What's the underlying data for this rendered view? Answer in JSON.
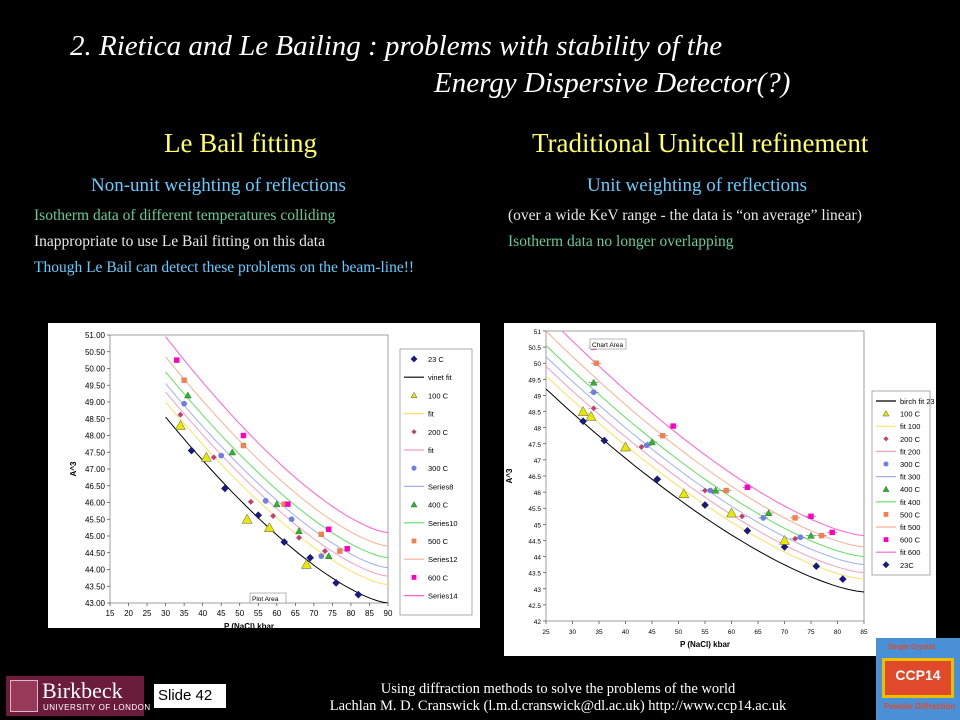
{
  "slide": {
    "title_line1": "2. Rietica and Le Bailing : problems with stability of the",
    "title_line2": "Energy Dispersive Detector(?)",
    "left": {
      "heading": "Le Bail fitting",
      "subheading": "Non-unit weighting of reflections",
      "bullets": [
        "Isotherm data of different temperatures colliding",
        "Inappropriate to use Le Bail fitting on this data",
        "Though Le Bail can detect these problems on the beam-line!!"
      ]
    },
    "right": {
      "heading": "Traditional Unitcell refinement",
      "subheading": "Unit weighting of reflections",
      "bullets": [
        "(over a wide KeV range - the data is “on average” linear)",
        "Isotherm data no longer overlapping"
      ]
    },
    "footer": {
      "slide_label": "Slide 42",
      "line1": "Using diffraction methods to solve the problems of the world",
      "line2": "Lachlan M. D. Cranswick (l.m.d.cranswick@dl.ac.uk) http://www.ccp14.ac.uk",
      "birkbeck_name": "Birkbeck",
      "birkbeck_sub": "UNIVERSITY OF LONDON",
      "ccp_top": "Single Crystal",
      "ccp_name": "CCP14",
      "ccp_bottom": "Powder Diffraction"
    }
  },
  "chart_data": [
    {
      "type": "scatter",
      "xlabel": "P (NaCl) kbar",
      "ylabel": "A^3",
      "xlim": [
        15,
        90
      ],
      "ylim": [
        43,
        51
      ],
      "xticks": [
        "15",
        "20",
        "25",
        "30",
        "35",
        "40",
        "45",
        "50",
        "55",
        "60",
        "65",
        "70",
        "75",
        "80",
        "85",
        "90"
      ],
      "yticks": [
        "43.00",
        "43.50",
        "44.00",
        "44.50",
        "45.00",
        "45.50",
        "46.00",
        "46.50",
        "47.00",
        "47.50",
        "48.00",
        "48.50",
        "49.00",
        "49.50",
        "50.00",
        "50.50",
        "51.00"
      ],
      "annotation": "Plot Area",
      "legend_position": "right",
      "legend": [
        "23 C",
        "vinet fit",
        "100 C",
        "fit",
        "200 C",
        "fit",
        "300 C",
        "Series8",
        "400 C",
        "Series10",
        "500 C",
        "Series12",
        "600 C",
        "Series14"
      ],
      "colors": {
        "23": "#1a1a7a",
        "100": "#e8e800",
        "200": "#c04070",
        "300": "#7080e0",
        "400": "#20c020",
        "500": "#f08050",
        "600": "#ff00c0"
      },
      "series": [
        {
          "name": "23 C",
          "marker": "diamond",
          "color": "#1a1a7a",
          "points": [
            [
              37,
              47.55
            ],
            [
              46,
              46.42
            ],
            [
              55,
              45.62
            ],
            [
              62,
              44.82
            ],
            [
              69,
              44.35
            ],
            [
              76,
              43.6
            ],
            [
              82,
              43.25
            ]
          ]
        },
        {
          "name": "100 C",
          "marker": "triangle",
          "color": "#e8e800",
          "points": [
            [
              34,
              48.3
            ],
            [
              41,
              47.35
            ],
            [
              52,
              45.5
            ],
            [
              58,
              45.25
            ],
            [
              68,
              44.15
            ]
          ]
        },
        {
          "name": "200 C",
          "marker": "diamond-open",
          "color": "#c04070",
          "points": [
            [
              34,
              48.62
            ],
            [
              43,
              47.35
            ],
            [
              53,
              46.02
            ],
            [
              59,
              45.6
            ],
            [
              66,
              44.95
            ],
            [
              73,
              44.55
            ]
          ]
        },
        {
          "name": "300 C",
          "marker": "circle",
          "color": "#7080e0",
          "points": [
            [
              35,
              48.95
            ],
            [
              45,
              47.4
            ],
            [
              57,
              46.05
            ],
            [
              64,
              45.5
            ],
            [
              72,
              44.4
            ]
          ]
        },
        {
          "name": "400 C",
          "marker": "triangle",
          "color": "#20c020",
          "points": [
            [
              36,
              49.2
            ],
            [
              48,
              47.5
            ],
            [
              60,
              45.95
            ],
            [
              66,
              45.15
            ],
            [
              74,
              44.4
            ]
          ]
        },
        {
          "name": "500 C",
          "marker": "square",
          "color": "#f08050",
          "points": [
            [
              35,
              49.65
            ],
            [
              51,
              47.7
            ],
            [
              62,
              45.95
            ],
            [
              72,
              45.05
            ],
            [
              77,
              44.55
            ]
          ]
        },
        {
          "name": "600 C",
          "marker": "square",
          "color": "#ff00c0",
          "points": [
            [
              33,
              50.25
            ],
            [
              51,
              48.0
            ],
            [
              63,
              45.95
            ],
            [
              74,
              45.2
            ],
            [
              79,
              44.62
            ]
          ]
        }
      ],
      "fit_lines": [
        {
          "color": "#000000",
          "x": [
            30,
            90
          ],
          "y0": 48.55,
          "y1": 43.0
        },
        {
          "color": "#ffe060",
          "x": [
            30,
            90
          ],
          "y0": 49.0,
          "y1": 43.55
        },
        {
          "color": "#f0a0c0",
          "x": [
            30,
            90
          ],
          "y0": 49.3,
          "y1": 43.8
        },
        {
          "color": "#a0b0f0",
          "x": [
            30,
            90
          ],
          "y0": 49.55,
          "y1": 44.05
        },
        {
          "color": "#60e060",
          "x": [
            30,
            90
          ],
          "y0": 49.9,
          "y1": 44.35
        },
        {
          "color": "#f8b090",
          "x": [
            30,
            90
          ],
          "y0": 50.35,
          "y1": 44.7
        },
        {
          "color": "#ff60d0",
          "x": [
            30,
            90
          ],
          "y0": 50.95,
          "y1": 45.1
        }
      ]
    },
    {
      "type": "scatter",
      "xlabel": "P (NaCl) kbar",
      "ylabel": "A^3",
      "xlim": [
        25,
        85
      ],
      "ylim": [
        42,
        51
      ],
      "xticks": [
        "25",
        "30",
        "35",
        "40",
        "45",
        "50",
        "55",
        "60",
        "65",
        "70",
        "75",
        "80",
        "85"
      ],
      "yticks": [
        "42",
        "42.5",
        "43",
        "43.5",
        "44",
        "44.5",
        "45",
        "45.5",
        "46",
        "46.5",
        "47",
        "47.5",
        "48",
        "48.5",
        "49",
        "49.5",
        "50",
        "50.5",
        "51"
      ],
      "annotation": "Chart Area",
      "legend_position": "right",
      "legend": [
        "birch fit 23",
        "100 C",
        "fit 100",
        "200 C",
        "fit 200",
        "300 C",
        "fit 300",
        "400 C",
        "fit 400",
        "500 C",
        "fit 500",
        "600 C",
        "fit 600",
        "23C"
      ],
      "series": [
        {
          "name": "23C",
          "marker": "diamond",
          "color": "#1a1a7a",
          "points": [
            [
              32,
              48.2
            ],
            [
              36,
              47.6
            ],
            [
              46,
              46.4
            ],
            [
              55,
              45.6
            ],
            [
              63,
              44.8
            ],
            [
              70,
              44.3
            ],
            [
              76,
              43.7
            ],
            [
              81,
              43.3
            ]
          ]
        },
        {
          "name": "100 C",
          "marker": "triangle",
          "color": "#e8e800",
          "points": [
            [
              32,
              48.5
            ],
            [
              33.5,
              48.35
            ],
            [
              40,
              47.4
            ],
            [
              51,
              45.95
            ],
            [
              60,
              45.35
            ],
            [
              70,
              44.5
            ]
          ]
        },
        {
          "name": "200 C",
          "marker": "diamond-open",
          "color": "#c04070",
          "points": [
            [
              34,
              48.6
            ],
            [
              43,
              47.4
            ],
            [
              55,
              46.05
            ],
            [
              62,
              45.25
            ],
            [
              72,
              44.55
            ]
          ]
        },
        {
          "name": "300 C",
          "marker": "circle",
          "color": "#7080e0",
          "points": [
            [
              34,
              49.1
            ],
            [
              44,
              47.45
            ],
            [
              56,
              46.05
            ],
            [
              66,
              45.2
            ],
            [
              73,
              44.6
            ]
          ]
        },
        {
          "name": "400 C",
          "marker": "triangle",
          "color": "#20c020",
          "points": [
            [
              34,
              49.4
            ],
            [
              45,
              47.55
            ],
            [
              57,
              46.05
            ],
            [
              67,
              45.35
            ],
            [
              75,
              44.65
            ]
          ]
        },
        {
          "name": "500 C",
          "marker": "square",
          "color": "#f08050",
          "points": [
            [
              34.5,
              50.0
            ],
            [
              47,
              47.75
            ],
            [
              59,
              46.05
            ],
            [
              72,
              45.2
            ],
            [
              77,
              44.65
            ]
          ]
        },
        {
          "name": "600 C",
          "marker": "square",
          "color": "#ff00c0",
          "points": [
            [
              34,
              50.5
            ],
            [
              49,
              48.05
            ],
            [
              63,
              46.15
            ],
            [
              75,
              45.25
            ],
            [
              79,
              44.75
            ]
          ]
        }
      ],
      "fit_lines": [
        {
          "color": "#000000",
          "y_at_25": 49.2,
          "y_at_85": 42.9
        },
        {
          "color": "#ffe060",
          "y_at_25": 49.6,
          "y_at_85": 43.3
        },
        {
          "color": "#f0a0c0",
          "y_at_25": 49.9,
          "y_at_85": 43.5
        },
        {
          "color": "#a0b0f0",
          "y_at_25": 50.2,
          "y_at_85": 43.75
        },
        {
          "color": "#60e060",
          "y_at_25": 50.55,
          "y_at_85": 44.0
        },
        {
          "color": "#f8b090",
          "y_at_25": 51.0,
          "y_at_85": 44.3
        },
        {
          "color": "#ff60d0",
          "y_at_25": 51.5,
          "y_at_85": 44.65
        }
      ]
    }
  ]
}
